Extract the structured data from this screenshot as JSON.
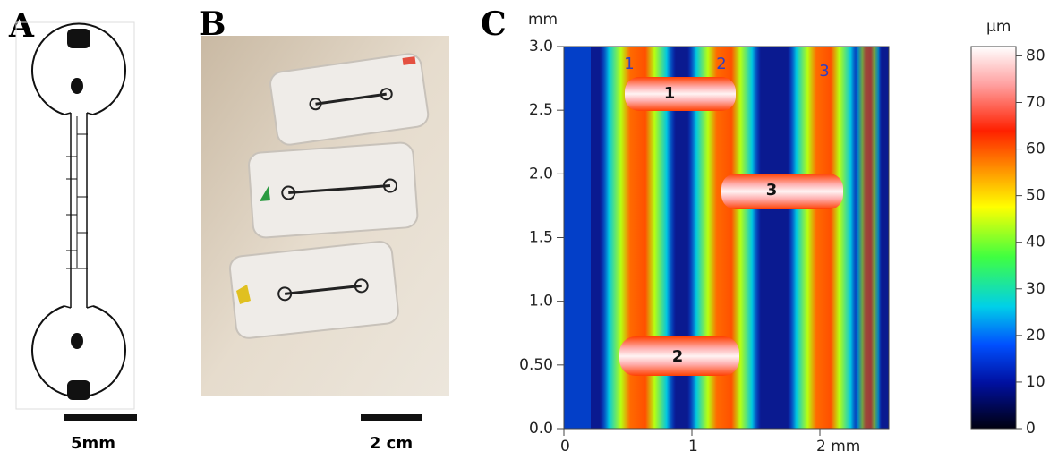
{
  "panels": {
    "a": {
      "label": "A",
      "scale_bar": "5mm"
    },
    "b": {
      "label": "B",
      "scale_bar": "2 cm"
    },
    "c": {
      "label": "C",
      "y_unit": "mm",
      "xlim": [
        0,
        2.54
      ],
      "ylim": [
        0,
        3.0
      ],
      "xticks": [
        0,
        1,
        {
          "value": 2,
          "label": "2 mm"
        }
      ],
      "yticks": [
        {
          "value": 0,
          "label": "0.0"
        },
        {
          "value": 0.5,
          "label": "0.50"
        },
        {
          "value": 1,
          "label": "1.0"
        },
        1.5,
        {
          "value": 2,
          "label": "2.0"
        },
        2.5,
        {
          "value": 3,
          "label": "3.0"
        }
      ],
      "channel_labels": [
        "1",
        "2",
        "3"
      ],
      "junction_labels": [
        "1",
        "2",
        "3"
      ],
      "colorbar": {
        "unit": "µm",
        "lim": [
          0,
          82
        ],
        "ticks": [
          0,
          10,
          20,
          30,
          40,
          50,
          60,
          70,
          80
        ]
      }
    }
  }
}
